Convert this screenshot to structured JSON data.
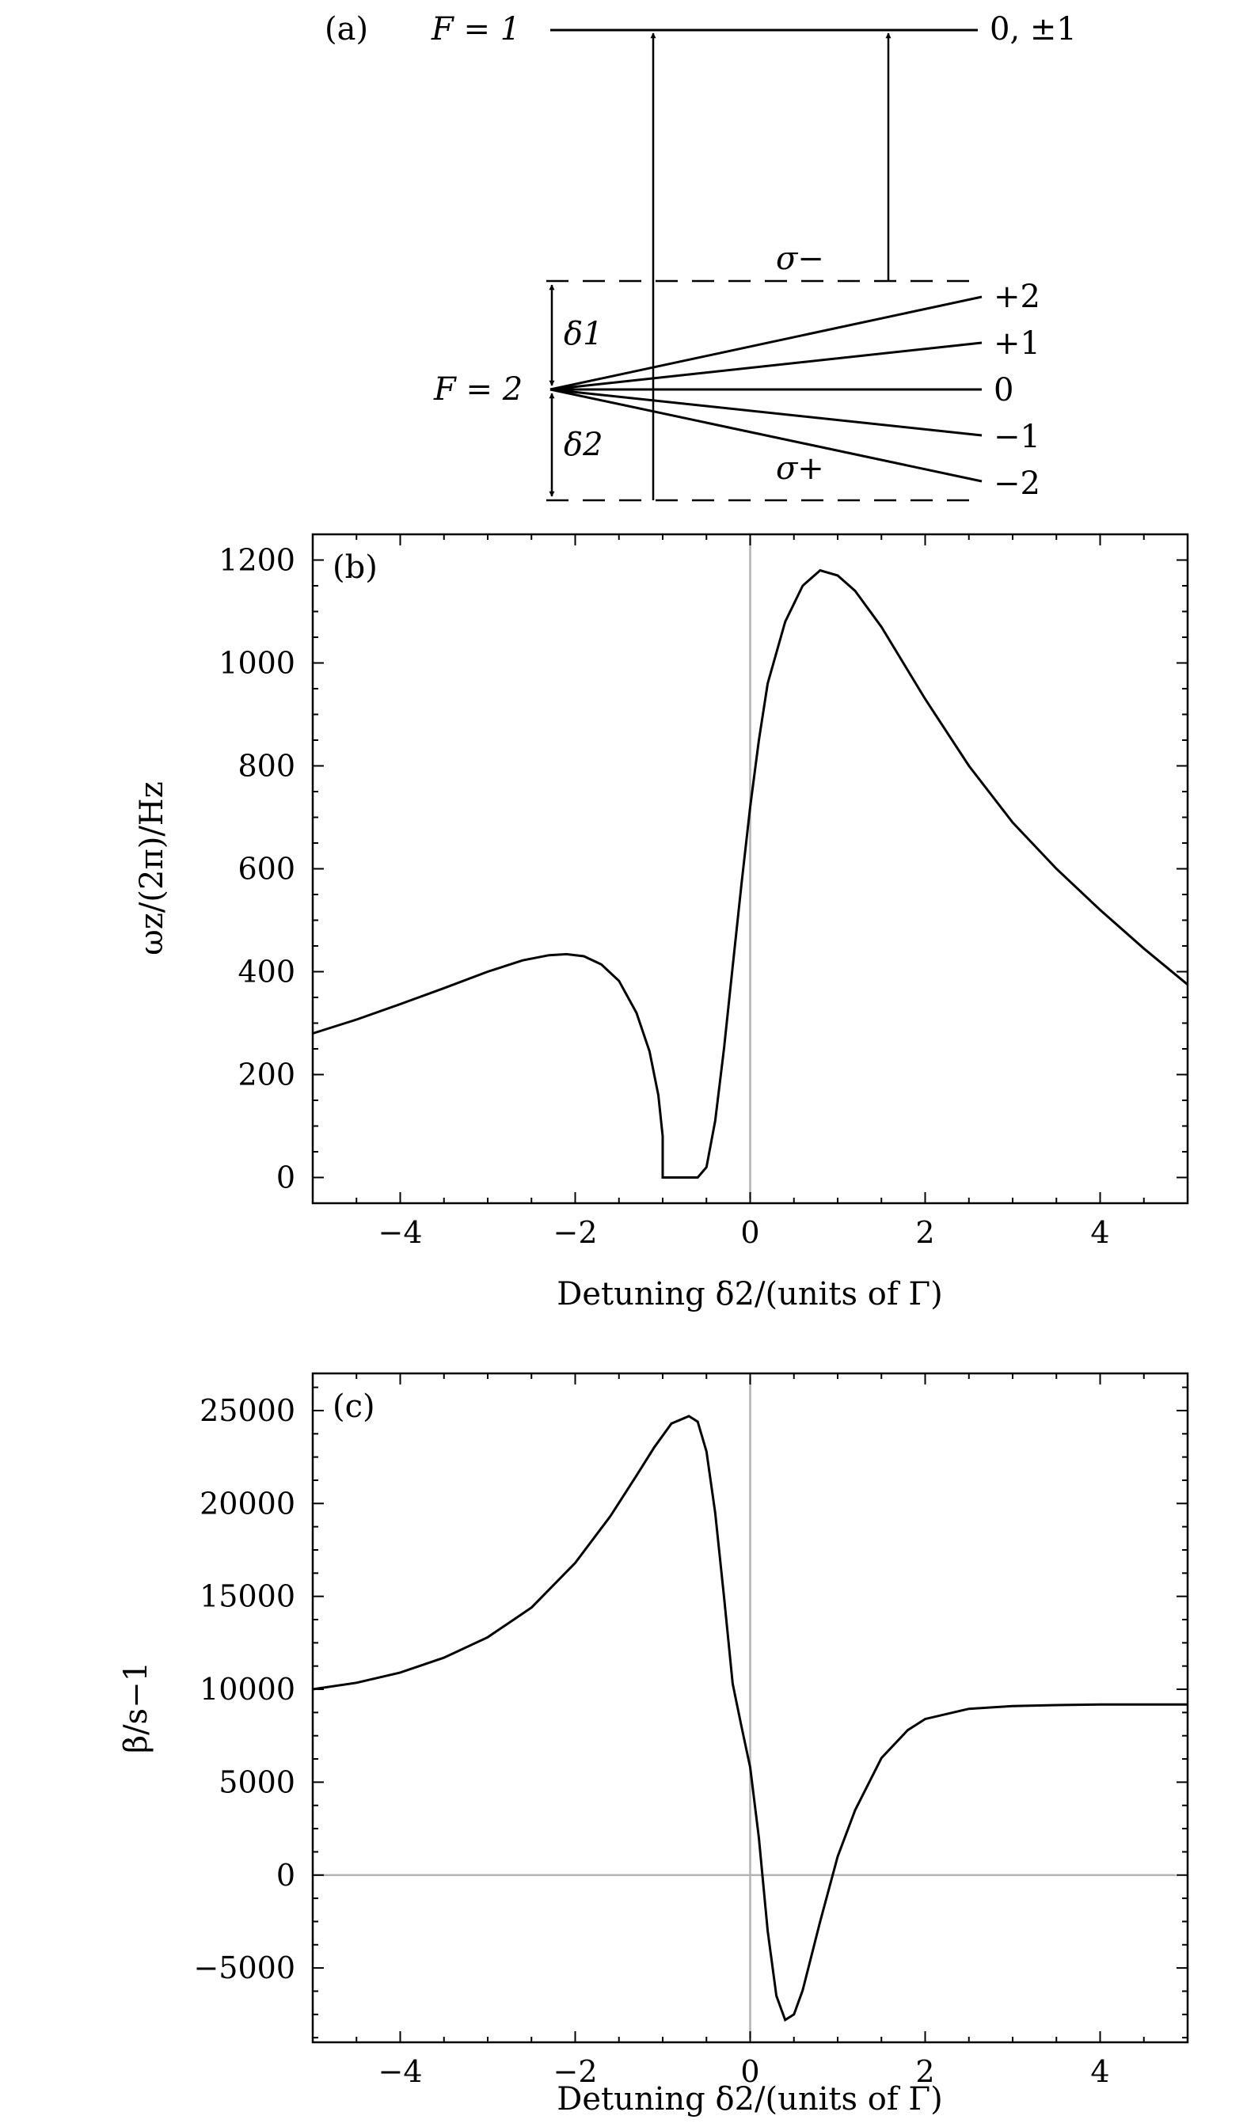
{
  "panel_a": {
    "tag": "(a)",
    "upper_level": {
      "label": "F = 1",
      "sublevels": "0, ±1"
    },
    "lower_level": {
      "label": "F = 2",
      "sublevels": [
        "+2",
        "+1",
        "0",
        "−1",
        "−2"
      ]
    },
    "detunings": [
      "δ1",
      "δ2"
    ],
    "beams": [
      "σ−",
      "σ+"
    ]
  },
  "chart_data": [
    {
      "type": "line",
      "tag": "(b)",
      "xlabel": "Detuning δ2/(units of Γ)",
      "ylabel": "ωz/(2π)/Hz",
      "xlim": [
        -5,
        5
      ],
      "ylim": [
        -50,
        1250
      ],
      "xticks": [
        -4,
        -2,
        0,
        2,
        4
      ],
      "yticks": [
        0,
        200,
        400,
        600,
        800,
        1000,
        1200
      ],
      "grid": false,
      "reference_lines": {
        "x": 0
      },
      "series": [
        {
          "x": [
            -5,
            -4.5,
            -4,
            -3.5,
            -3,
            -2.6,
            -2.3,
            -2.1,
            -1.9,
            -1.7,
            -1.5,
            -1.3,
            -1.15,
            -1.05,
            -1.0,
            -1.0,
            -0.8,
            -0.6,
            -0.5,
            -0.4,
            -0.3,
            -0.2,
            -0.1,
            0,
            0.1,
            0.2,
            0.4,
            0.6,
            0.8,
            1.0,
            1.2,
            1.5,
            2.0,
            2.5,
            3.0,
            3.5,
            4.0,
            4.5,
            5.0
          ],
          "y": [
            280,
            307,
            337,
            368,
            400,
            422,
            432,
            434,
            430,
            414,
            382,
            320,
            245,
            160,
            80,
            0,
            0,
            0,
            20,
            110,
            250,
            410,
            570,
            720,
            850,
            960,
            1080,
            1150,
            1180,
            1170,
            1140,
            1070,
            930,
            800,
            690,
            600,
            520,
            445,
            375
          ]
        }
      ]
    },
    {
      "type": "line",
      "tag": "(c)",
      "xlabel": "Detuning δ2/(units of Γ)",
      "ylabel": "β/s−1",
      "xlim": [
        -5,
        5
      ],
      "ylim": [
        -9000,
        27000
      ],
      "xticks": [
        -4,
        -2,
        0,
        2,
        4
      ],
      "yticks": [
        -5000,
        0,
        5000,
        10000,
        15000,
        20000,
        25000
      ],
      "grid": false,
      "reference_lines": {
        "x": 0,
        "y": 0
      },
      "series": [
        {
          "x": [
            -5,
            -4.5,
            -4,
            -3.5,
            -3,
            -2.5,
            -2,
            -1.6,
            -1.3,
            -1.1,
            -0.9,
            -0.7,
            -0.6,
            -0.5,
            -0.4,
            -0.3,
            -0.2,
            -0.1,
            0,
            0.1,
            0.2,
            0.3,
            0.4,
            0.5,
            0.6,
            0.8,
            1.0,
            1.2,
            1.5,
            1.8,
            2.0,
            2.5,
            3.0,
            3.5,
            4.0,
            4.5,
            5.0
          ],
          "y": [
            10000,
            10350,
            10900,
            11700,
            12800,
            14400,
            16800,
            19300,
            21500,
            23000,
            24300,
            24700,
            24400,
            22800,
            19500,
            15000,
            10300,
            8000,
            5800,
            2000,
            -3000,
            -6500,
            -7800,
            -7500,
            -6200,
            -2500,
            1000,
            3500,
            6300,
            7800,
            8400,
            8950,
            9100,
            9150,
            9180,
            9180,
            9180
          ]
        }
      ]
    }
  ]
}
